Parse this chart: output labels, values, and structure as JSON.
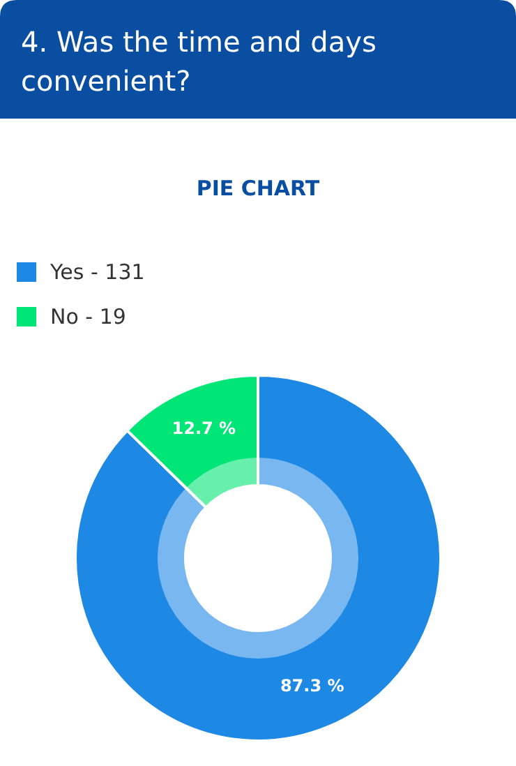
{
  "chart_data": {
    "type": "donut",
    "title": "4. Was the time and days convenient?",
    "subtitle": "PIE CHART",
    "categories": [
      "Yes - 131",
      "No - 19"
    ],
    "values": [
      87.3,
      12.7
    ],
    "colors": [
      "#1e88e5",
      "#00e676"
    ],
    "value_labels": [
      "87.3 %",
      "12.7 %"
    ],
    "legend": "top left"
  }
}
